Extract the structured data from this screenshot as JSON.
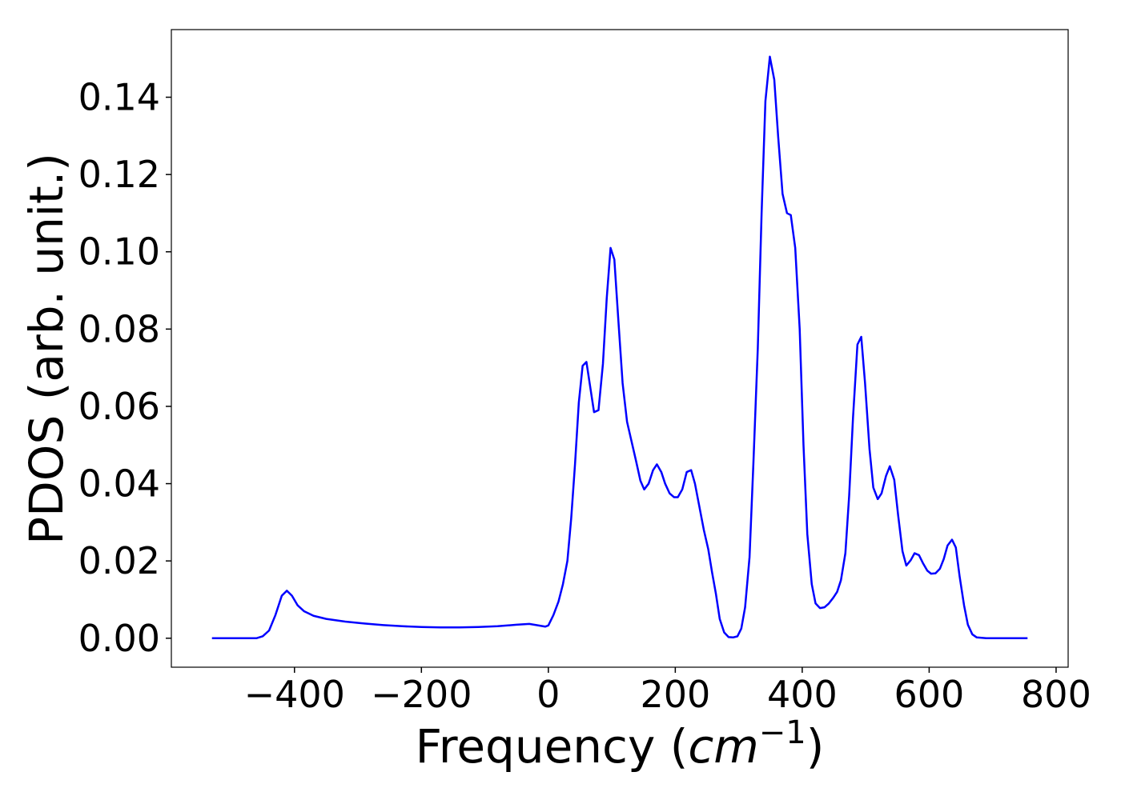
{
  "chart_data": {
    "type": "line",
    "xlabel": [
      "Frequency (",
      "cm",
      "−1",
      ")"
    ],
    "ylabel": "PDOS (arb. unit.)",
    "xlim": [
      -594,
      819
    ],
    "ylim": [
      -0.0075,
      0.1575
    ],
    "xticks": [
      {
        "value": -400,
        "label": "−400"
      },
      {
        "value": -200,
        "label": "−200"
      },
      0,
      200,
      400,
      600,
      800
    ],
    "yticks": [
      {
        "value": 0,
        "label": "0.00"
      },
      {
        "value": 0.02,
        "label": "0.02"
      },
      {
        "value": 0.04,
        "label": "0.04"
      },
      {
        "value": 0.06,
        "label": "0.06"
      },
      {
        "value": 0.08,
        "label": "0.08"
      },
      {
        "value": 0.1,
        "label": "0.10"
      },
      {
        "value": 0.12,
        "label": "0.12"
      },
      {
        "value": 0.14,
        "label": "0.14"
      }
    ],
    "series": [
      {
        "color": "#0000ff",
        "x": [
          -530,
          -460,
          -450,
          -440,
          -430,
          -420,
          -412,
          -404,
          -395,
          -385,
          -370,
          -350,
          -320,
          -290,
          -260,
          -230,
          -200,
          -170,
          -140,
          -110,
          -80,
          -50,
          -30,
          -15,
          -5,
          0,
          8,
          16,
          23,
          30,
          36,
          42,
          48,
          54,
          60,
          66,
          72,
          79,
          86,
          92,
          98,
          104,
          110,
          117,
          124,
          131,
          138,
          145,
          151,
          158,
          165,
          171,
          178,
          184,
          191,
          198,
          204,
          211,
          218,
          225,
          231,
          238,
          245,
          252,
          258,
          264,
          270,
          277,
          284,
          291,
          298,
          304,
          310,
          317,
          323,
          330,
          336,
          342,
          349,
          356,
          362,
          369,
          376,
          382,
          389,
          396,
          402,
          408,
          415,
          421,
          428,
          435,
          442,
          449,
          455,
          461,
          468,
          474,
          480,
          487,
          493,
          499,
          506,
          512,
          519,
          525,
          532,
          538,
          545,
          551,
          558,
          564,
          571,
          577,
          584,
          590,
          597,
          603,
          610,
          617,
          623,
          629,
          636,
          642,
          648,
          655,
          661,
          668,
          675,
          690,
          755
        ],
        "values": [
          0,
          0,
          0.0005,
          0.002,
          0.006,
          0.011,
          0.0123,
          0.011,
          0.0085,
          0.007,
          0.0058,
          0.005,
          0.0043,
          0.0038,
          0.0034,
          0.0031,
          0.0029,
          0.0028,
          0.0028,
          0.0029,
          0.0031,
          0.0035,
          0.0037,
          0.0033,
          0.003,
          0.0033,
          0.006,
          0.0095,
          0.014,
          0.02,
          0.031,
          0.045,
          0.061,
          0.0705,
          0.0715,
          0.065,
          0.0585,
          0.059,
          0.071,
          0.088,
          0.101,
          0.098,
          0.083,
          0.066,
          0.056,
          0.051,
          0.046,
          0.0408,
          0.0385,
          0.04,
          0.0435,
          0.045,
          0.043,
          0.04,
          0.0375,
          0.0365,
          0.0365,
          0.0385,
          0.043,
          0.0435,
          0.04,
          0.034,
          0.028,
          0.023,
          0.017,
          0.0115,
          0.005,
          0.0015,
          0.0003,
          0.0002,
          0.0005,
          0.0025,
          0.008,
          0.021,
          0.045,
          0.075,
          0.11,
          0.139,
          0.1505,
          0.1445,
          0.13,
          0.115,
          0.11,
          0.1095,
          0.101,
          0.08,
          0.05,
          0.027,
          0.014,
          0.009,
          0.0078,
          0.008,
          0.009,
          0.0105,
          0.012,
          0.015,
          0.022,
          0.037,
          0.057,
          0.076,
          0.078,
          0.066,
          0.049,
          0.039,
          0.036,
          0.0375,
          0.042,
          0.0445,
          0.041,
          0.032,
          0.0225,
          0.0188,
          0.0202,
          0.022,
          0.0215,
          0.0195,
          0.0175,
          0.0167,
          0.0168,
          0.018,
          0.0205,
          0.024,
          0.0255,
          0.0235,
          0.016,
          0.0085,
          0.0035,
          0.001,
          0.0002,
          0,
          0
        ]
      }
    ]
  }
}
